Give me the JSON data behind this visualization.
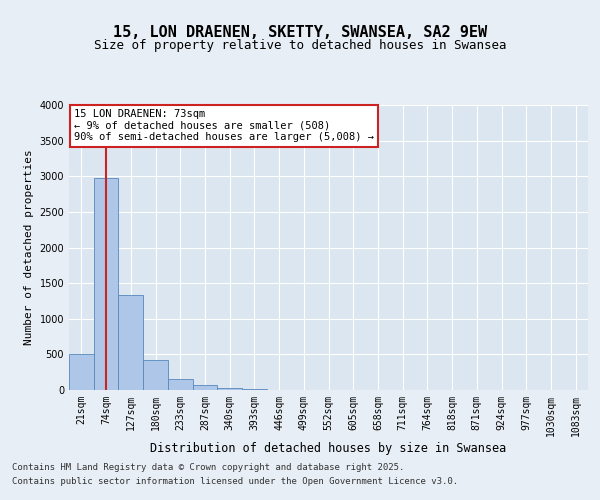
{
  "title": "15, LON DRAENEN, SKETTY, SWANSEA, SA2 9EW",
  "subtitle": "Size of property relative to detached houses in Swansea",
  "xlabel": "Distribution of detached houses by size in Swansea",
  "ylabel": "Number of detached properties",
  "categories": [
    "21sqm",
    "74sqm",
    "127sqm",
    "180sqm",
    "233sqm",
    "287sqm",
    "340sqm",
    "393sqm",
    "446sqm",
    "499sqm",
    "552sqm",
    "605sqm",
    "658sqm",
    "711sqm",
    "764sqm",
    "818sqm",
    "871sqm",
    "924sqm",
    "977sqm",
    "1030sqm",
    "1083sqm"
  ],
  "values": [
    510,
    2970,
    1330,
    415,
    160,
    75,
    30,
    10,
    5,
    2,
    1,
    0,
    0,
    0,
    0,
    0,
    0,
    0,
    0,
    0,
    0
  ],
  "bar_color": "#aec6e8",
  "bar_edge_color": "#5588bb",
  "vline_x": 1,
  "vline_color": "#cc2222",
  "annotation_text": "15 LON DRAENEN: 73sqm\n← 9% of detached houses are smaller (508)\n90% of semi-detached houses are larger (5,008) →",
  "annotation_box_color": "#cc2222",
  "ylim": [
    0,
    4000
  ],
  "yticks": [
    0,
    500,
    1000,
    1500,
    2000,
    2500,
    3000,
    3500,
    4000
  ],
  "background_color": "#e8eef5",
  "plot_bg_color": "#dce6f0",
  "grid_color": "#ffffff",
  "footer_line1": "Contains HM Land Registry data © Crown copyright and database right 2025.",
  "footer_line2": "Contains public sector information licensed under the Open Government Licence v3.0.",
  "title_fontsize": 11,
  "subtitle_fontsize": 9,
  "xlabel_fontsize": 8.5,
  "ylabel_fontsize": 8,
  "tick_fontsize": 7,
  "footer_fontsize": 6.5,
  "annotation_fontsize": 7.5
}
